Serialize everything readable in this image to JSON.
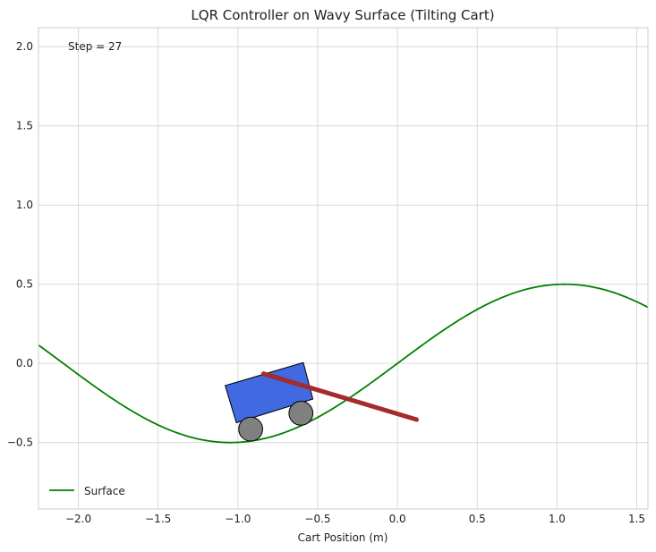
{
  "chart_data": {
    "type": "line",
    "title": "LQR Controller on Wavy Surface (Tilting Cart)",
    "xlabel": "Cart Position (m)",
    "ylabel": "",
    "xlim": [
      -2.25,
      1.57
    ],
    "ylim": [
      -0.92,
      2.12
    ],
    "xticks": [
      "−2.0",
      "−1.5",
      "−1.0",
      "−0.5",
      "0.0",
      "0.5",
      "1.0",
      "1.5"
    ],
    "xtick_values": [
      -2.0,
      -1.5,
      -1.0,
      -0.5,
      0.0,
      0.5,
      1.0,
      1.5
    ],
    "yticks": [
      "−0.5",
      "0.0",
      "0.5",
      "1.0",
      "1.5",
      "2.0"
    ],
    "ytick_values": [
      -0.5,
      0.0,
      0.5,
      1.0,
      1.5,
      2.0
    ],
    "grid": true,
    "legend_position": "lower-left",
    "annotation": "Step = 27",
    "series": [
      {
        "name": "Surface",
        "color": "#008000",
        "function": "y = 0.5 * sin(1.5 * x)",
        "x_range": [
          -2.25,
          1.57
        ]
      }
    ],
    "cart": {
      "body_corners": [
        [
          -1.08,
          -0.14
        ],
        [
          -0.59,
          0.005
        ],
        [
          -0.53,
          -0.225
        ],
        [
          -1.01,
          -0.375
        ]
      ],
      "body_color": "#4169e1",
      "wheels": [
        {
          "x": -0.92,
          "y": -0.415,
          "r": 0.075
        },
        {
          "x": -0.605,
          "y": -0.315,
          "r": 0.075
        }
      ],
      "wheel_color": "#808080",
      "pole": {
        "x1": -0.84,
        "y1": -0.065,
        "x2": 0.12,
        "y2": -0.355
      },
      "pole_color": "#a52a2a"
    }
  }
}
